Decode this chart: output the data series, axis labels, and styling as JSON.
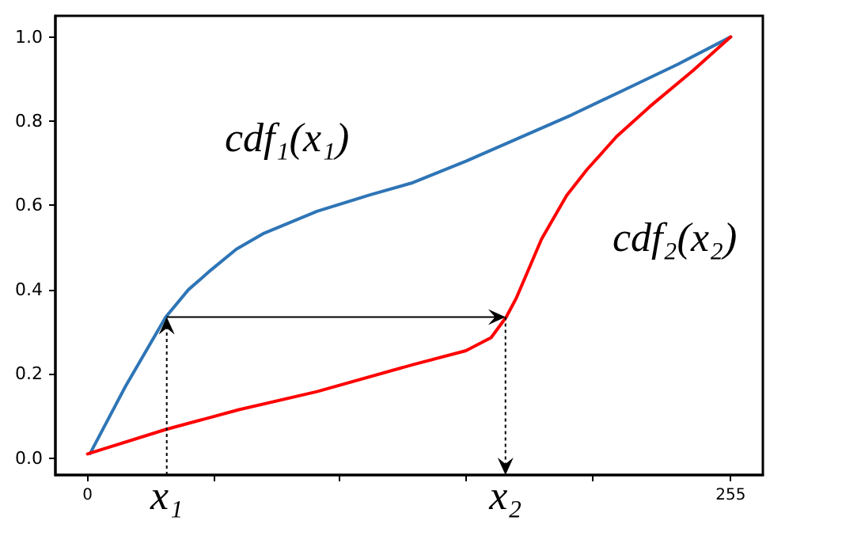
{
  "chart_data": {
    "type": "line",
    "line_style": "solid",
    "marker": "none",
    "grid": false,
    "xlim": [
      -12.75,
      267.75
    ],
    "ylim": [
      -0.04,
      1.05
    ],
    "xticks": [
      0,
      {
        "value": 50,
        "label": null
      },
      {
        "value": 100,
        "label": null
      },
      {
        "value": 150,
        "label": null
      },
      {
        "value": 200,
        "label": null
      },
      255
    ],
    "yticks": [
      {
        "value": 0,
        "label": "0.0"
      },
      {
        "value": 0.2,
        "label": "0.2"
      },
      {
        "value": 0.4,
        "label": "0.4"
      },
      {
        "value": 0.6,
        "label": "0.6"
      },
      {
        "value": 0.8,
        "label": "0.8"
      },
      {
        "value": 1,
        "label": "1.0"
      }
    ],
    "series": [
      {
        "color": "#2e75b6",
        "x": [
          1,
          15,
          31,
          40,
          49,
          59,
          70,
          91,
          112,
          129,
          150,
          171,
          192,
          212,
          234,
          255
        ],
        "values": [
          0.011,
          0.17,
          0.335,
          0.4,
          0.447,
          0.496,
          0.534,
          0.586,
          0.625,
          0.654,
          0.705,
          0.76,
          0.815,
          0.872,
          0.935,
          1.0
        ]
      },
      {
        "color": "#ff0000",
        "x": [
          0,
          31,
          60,
          91,
          129,
          150,
          160,
          166,
          170,
          174,
          180,
          190,
          198,
          210,
          223,
          240,
          255
        ],
        "values": [
          0.01,
          0.068,
          0.115,
          0.158,
          0.222,
          0.255,
          0.286,
          0.335,
          0.38,
          0.436,
          0.52,
          0.624,
          0.685,
          0.765,
          0.835,
          0.92,
          1.0
        ]
      }
    ],
    "annotations": [
      "cdf₁(x₁)",
      "cdf₂(x₂)",
      {
        "text": "x₁",
        "x": 31.4,
        "y": 0.335
      },
      {
        "text": "x₂",
        "x": 165.7,
        "y": 0.335
      }
    ]
  }
}
